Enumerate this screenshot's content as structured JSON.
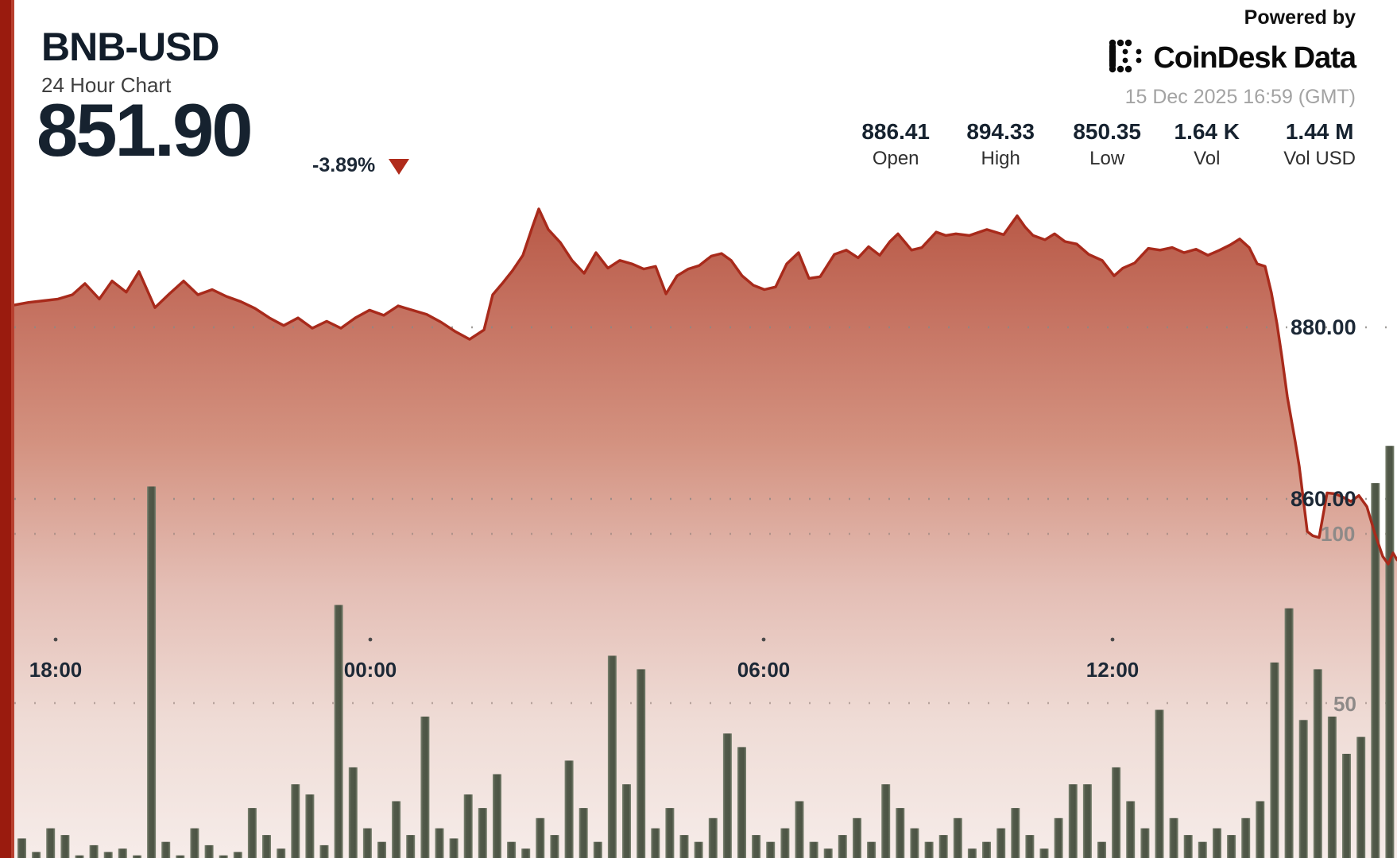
{
  "header": {
    "symbol": "BNB-USD",
    "subtitle": "24 Hour Chart",
    "last_price": "851.90",
    "change_pct": "-3.89%",
    "direction": "down"
  },
  "branding": {
    "powered_by": "Powered by",
    "brand_name": "CoinDesk",
    "brand_suffix": "Data",
    "timestamp": "15 Dec 2025 16:59 (GMT)"
  },
  "stats": [
    {
      "value": "886.41",
      "label": "Open"
    },
    {
      "value": "894.33",
      "label": "High"
    },
    {
      "value": "850.35",
      "label": "Low"
    },
    {
      "value": "1.64 K",
      "label": "Vol"
    },
    {
      "value": "1.44 M",
      "label": "Vol USD"
    }
  ],
  "colors": {
    "accent_red": "#9a1b0e",
    "line_red": "#a82a1b",
    "navy_text": "#16222f",
    "gray_text": "#a3a3a3",
    "volume_bar": "#525a4a"
  },
  "chart_data": {
    "type": "area",
    "title": "BNB-USD 24 Hour Chart",
    "legend": "none",
    "grid": "dotted",
    "x_axis": {
      "tick_labels": [
        "18:00",
        "00:00",
        "06:00",
        "12:00"
      ],
      "span_hours": 24
    },
    "price_axis": {
      "side": "right",
      "tick_labels": [
        "880.00",
        "860.00"
      ],
      "tick_values": [
        880,
        860
      ],
      "visible_range_approx": [
        851,
        896
      ]
    },
    "volume_axis": {
      "side": "right",
      "tick_labels": [
        "100",
        "50"
      ],
      "tick_values": [
        100,
        50
      ]
    },
    "summary": {
      "last": 851.9,
      "change_pct": -3.89,
      "open": 886.41,
      "high": 894.33,
      "low": 850.35,
      "vol": "1.64 K",
      "vol_usd": "1.44 M"
    },
    "price_series": [
      [
        0,
        882.6
      ],
      [
        0.0103,
        882.9
      ],
      [
        0.0213,
        883.1
      ],
      [
        0.0316,
        883.3
      ],
      [
        0.042,
        883.8
      ],
      [
        0.0511,
        885.1
      ],
      [
        0.0615,
        883.3
      ],
      [
        0.0707,
        885.4
      ],
      [
        0.081,
        884.1
      ],
      [
        0.0902,
        886.5
      ],
      [
        0.1017,
        882.3
      ],
      [
        0.1121,
        883.9
      ],
      [
        0.1224,
        885.4
      ],
      [
        0.1328,
        883.8
      ],
      [
        0.1431,
        884.4
      ],
      [
        0.1534,
        883.6
      ],
      [
        0.1638,
        883
      ],
      [
        0.1741,
        882.2
      ],
      [
        0.1845,
        881.1
      ],
      [
        0.1948,
        880.2
      ],
      [
        0.2052,
        881.1
      ],
      [
        0.2155,
        879.9
      ],
      [
        0.2259,
        880.7
      ],
      [
        0.2362,
        879.9
      ],
      [
        0.2466,
        881.1
      ],
      [
        0.2569,
        882
      ],
      [
        0.2672,
        881.4
      ],
      [
        0.2776,
        882.5
      ],
      [
        0.2879,
        882
      ],
      [
        0.2983,
        881.5
      ],
      [
        0.3086,
        880.6
      ],
      [
        0.319,
        879.5
      ],
      [
        0.3293,
        878.6
      ],
      [
        0.3397,
        879.7
      ],
      [
        0.346,
        883.8
      ],
      [
        0.3529,
        885.1
      ],
      [
        0.3603,
        886.6
      ],
      [
        0.3678,
        888.4
      ],
      [
        0.3747,
        891.7
      ],
      [
        0.3793,
        893.8
      ],
      [
        0.3862,
        891.4
      ],
      [
        0.3948,
        889.9
      ],
      [
        0.4034,
        887.8
      ],
      [
        0.4121,
        886.3
      ],
      [
        0.4207,
        888.7
      ],
      [
        0.4293,
        886.9
      ],
      [
        0.4379,
        887.8
      ],
      [
        0.4466,
        887.4
      ],
      [
        0.4552,
        886.8
      ],
      [
        0.4638,
        887.1
      ],
      [
        0.4713,
        883.9
      ],
      [
        0.4793,
        886
      ],
      [
        0.4874,
        886.8
      ],
      [
        0.4954,
        887.2
      ],
      [
        0.504,
        888.3
      ],
      [
        0.5115,
        888.6
      ],
      [
        0.5184,
        887.8
      ],
      [
        0.5264,
        886
      ],
      [
        0.5345,
        884.9
      ],
      [
        0.5425,
        884.4
      ],
      [
        0.5506,
        884.7
      ],
      [
        0.5586,
        887.4
      ],
      [
        0.5672,
        888.7
      ],
      [
        0.5747,
        885.7
      ],
      [
        0.5828,
        885.9
      ],
      [
        0.5931,
        888.5
      ],
      [
        0.6017,
        889
      ],
      [
        0.6103,
        888.1
      ],
      [
        0.6178,
        889.4
      ],
      [
        0.6259,
        888.4
      ],
      [
        0.6333,
        890
      ],
      [
        0.6391,
        890.9
      ],
      [
        0.6489,
        889
      ],
      [
        0.6563,
        889.3
      ],
      [
        0.6667,
        891.1
      ],
      [
        0.6736,
        890.7
      ],
      [
        0.681,
        890.9
      ],
      [
        0.6908,
        890.7
      ],
      [
        0.7034,
        891.4
      ],
      [
        0.7155,
        890.8
      ],
      [
        0.7253,
        893
      ],
      [
        0.731,
        891.7
      ],
      [
        0.7368,
        890.7
      ],
      [
        0.7454,
        890.2
      ],
      [
        0.7523,
        890.9
      ],
      [
        0.7598,
        890
      ],
      [
        0.7684,
        889.7
      ],
      [
        0.777,
        888.5
      ],
      [
        0.7868,
        887.8
      ],
      [
        0.7954,
        886
      ],
      [
        0.8017,
        886.9
      ],
      [
        0.8103,
        887.5
      ],
      [
        0.8201,
        889.2
      ],
      [
        0.8287,
        889
      ],
      [
        0.8374,
        889.3
      ],
      [
        0.846,
        888.7
      ],
      [
        0.8546,
        889.1
      ],
      [
        0.8632,
        888.4
      ],
      [
        0.8718,
        889
      ],
      [
        0.8793,
        889.6
      ],
      [
        0.8862,
        890.3
      ],
      [
        0.8931,
        889.3
      ],
      [
        0.8989,
        887.4
      ],
      [
        0.9046,
        887.1
      ],
      [
        0.9092,
        884
      ],
      [
        0.9132,
        880.4
      ],
      [
        0.9167,
        876.6
      ],
      [
        0.9207,
        871.9
      ],
      [
        0.9264,
        866.7
      ],
      [
        0.9293,
        863.8
      ],
      [
        0.9351,
        856.2
      ],
      [
        0.9391,
        855.7
      ],
      [
        0.9437,
        855.5
      ],
      [
        0.9494,
        860.7
      ],
      [
        0.9552,
        860.6
      ],
      [
        0.9609,
        860.2
      ],
      [
        0.9667,
        859.7
      ],
      [
        0.9724,
        860.4
      ],
      [
        0.9782,
        859.1
      ],
      [
        0.9839,
        856
      ],
      [
        0.9897,
        853.3
      ],
      [
        0.9937,
        852.4
      ],
      [
        0.9971,
        853.7
      ],
      [
        1,
        852.9
      ]
    ],
    "volume_series": [
      10,
      6,
      13,
      11,
      5,
      8,
      6,
      7,
      5,
      114,
      9,
      5,
      13,
      8,
      5,
      6,
      19,
      11,
      7,
      26,
      23,
      8,
      79,
      31,
      13,
      9,
      21,
      11,
      46,
      13,
      10,
      23,
      19,
      29,
      9,
      7,
      16,
      11,
      33,
      19,
      9,
      64,
      26,
      60,
      13,
      19,
      11,
      9,
      16,
      41,
      37,
      11,
      9,
      13,
      21,
      9,
      7,
      11,
      16,
      9,
      26,
      19,
      13,
      9,
      11,
      16,
      7,
      9,
      13,
      19,
      11,
      7,
      16,
      26,
      26,
      9,
      31,
      21,
      13,
      48,
      16,
      11,
      9,
      13,
      11,
      16,
      21,
      62,
      78,
      45,
      60,
      46,
      35,
      40,
      115,
      126
    ]
  }
}
